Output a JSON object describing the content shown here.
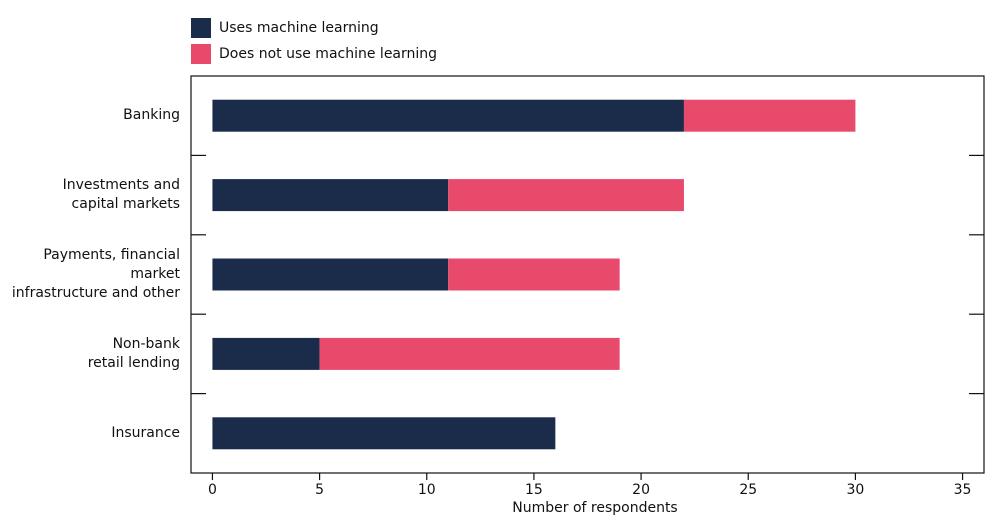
{
  "chart_data": {
    "type": "bar",
    "orientation": "horizontal",
    "stacked": true,
    "categories": [
      "Banking",
      "Investments and\ncapital markets",
      "Payments, financial market\ninfrastructure and other",
      "Non-bank\nretail lending",
      "Insurance"
    ],
    "series": [
      {
        "name": "Uses machine learning",
        "color": "#1b2c4b",
        "values": [
          22,
          11,
          11,
          5,
          16
        ]
      },
      {
        "name": "Does not use machine learning",
        "color": "#e84a6c",
        "values": [
          8,
          11,
          8,
          14,
          0
        ]
      }
    ],
    "xlabel": "Number of respondents",
    "xlim": [
      -1,
      36
    ],
    "xticks": [
      0,
      5,
      10,
      15,
      20,
      25,
      30,
      35
    ]
  }
}
